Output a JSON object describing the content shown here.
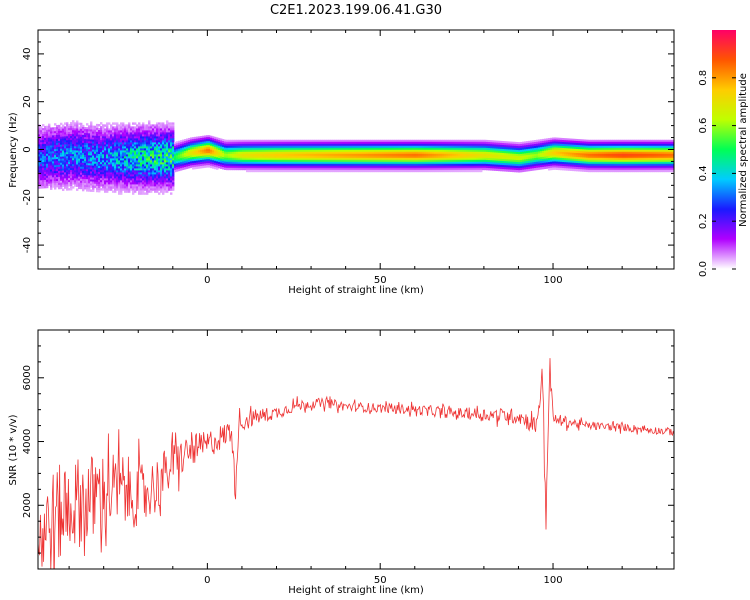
{
  "title": "C2E1.2023.199.06.41.G30",
  "colors": {
    "snr_line": "#ee3333"
  },
  "colorbar": {
    "label": "Normalized spectral amplitude",
    "ticks": [
      0.0,
      0.2,
      0.4,
      0.6,
      0.8
    ],
    "tick_labels": [
      "0.0",
      "0.2",
      "0.4",
      "0.6",
      "0.8"
    ],
    "colormap": [
      "#ffffff",
      "#b000ff",
      "#1a1aff",
      "#00ccff",
      "#00ff55",
      "#bfff00",
      "#ffcc00",
      "#ff5500",
      "#ff0066"
    ]
  },
  "chart_data": [
    {
      "type": "heatmap",
      "title": "C2E1.2023.199.06.41.G30",
      "xlabel": "Height of straight line (km)",
      "ylabel": "Frequency (Hz)",
      "xlim": [
        -49,
        135
      ],
      "ylim": [
        -50,
        50
      ],
      "x_ticks": [
        0,
        50,
        100
      ],
      "x_tick_labels": [
        "0",
        "50",
        "100"
      ],
      "y_ticks": [
        -40,
        -20,
        0,
        20,
        40
      ],
      "y_tick_labels": [
        "-40",
        "-20",
        "0",
        "20",
        "40"
      ],
      "ridge": {
        "x": [
          -49,
          -40,
          -30,
          -20,
          -10,
          -5,
          0,
          5,
          10,
          20,
          40,
          60,
          80,
          90,
          95,
          100,
          110,
          120,
          135
        ],
        "freq": [
          -3,
          -2,
          -3,
          -3,
          -3,
          -1,
          0,
          -2,
          -2,
          -2,
          -2,
          -2,
          -2,
          -3,
          -2,
          -1,
          -2,
          -2,
          -2
        ],
        "amplitude": [
          0.3,
          0.35,
          0.35,
          0.45,
          0.5,
          0.7,
          0.85,
          0.6,
          0.7,
          0.75,
          0.8,
          0.85,
          0.7,
          0.65,
          0.6,
          0.75,
          0.85,
          0.9,
          0.85
        ]
      }
    },
    {
      "type": "line",
      "xlabel": "Height of straight line (km)",
      "ylabel": "SNR (10 * v/v)",
      "xlim": [
        -49,
        135
      ],
      "ylim": [
        0,
        7500
      ],
      "x_ticks": [
        0,
        50,
        100
      ],
      "x_tick_labels": [
        "0",
        "50",
        "100"
      ],
      "y_ticks": [
        2000,
        4000,
        6000
      ],
      "y_tick_labels": [
        "2000",
        "4000",
        "6000"
      ],
      "series": [
        {
          "x": [
            -49,
            -45,
            -40,
            -35,
            -30,
            -25,
            -20,
            -15,
            -12,
            -10,
            -5,
            0,
            5,
            7,
            8,
            9,
            10,
            15,
            20,
            25,
            30,
            35,
            40,
            50,
            60,
            70,
            80,
            90,
            95,
            97,
            98,
            99,
            100,
            110,
            120,
            135
          ],
          "y": [
            1000,
            1500,
            2000,
            2200,
            2400,
            2500,
            2300,
            2600,
            3000,
            3300,
            3700,
            3900,
            4200,
            4400,
            2500,
            4500,
            4600,
            4800,
            4900,
            5100,
            5200,
            5200,
            5100,
            5050,
            5000,
            4900,
            4850,
            4800,
            4500,
            6000,
            1500,
            6500,
            4700,
            4500,
            4450,
            4300
          ],
          "noise": [
            1600,
            1600,
            1500,
            1400,
            1300,
            1200,
            1000,
            900,
            800,
            700,
            500,
            450,
            400,
            400,
            400,
            350,
            300,
            250,
            200,
            180,
            160,
            150,
            150,
            150,
            150,
            170,
            200,
            250,
            300,
            500,
            500,
            400,
            200,
            120,
            120,
            120
          ]
        }
      ]
    }
  ]
}
